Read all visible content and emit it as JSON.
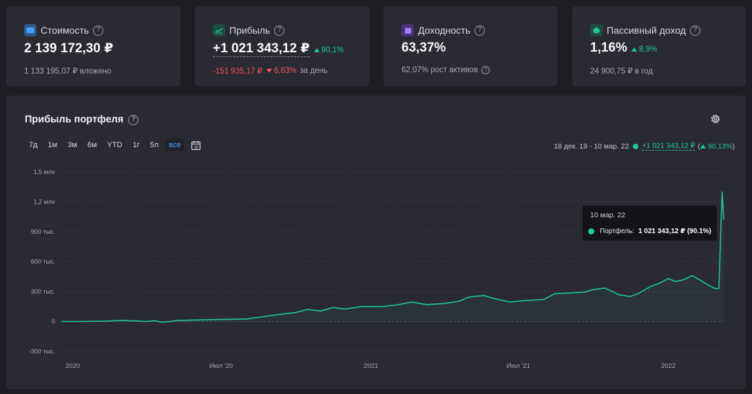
{
  "cards": [
    {
      "label": "Стоимость",
      "value": "2 139 172,30 ₽",
      "sub": "1 133 195,07 ₽ вложено",
      "icon": "wallet-icon",
      "color": "#3d8fe0"
    },
    {
      "label": "Прибыль",
      "value": "+1 021 343,12 ₽",
      "delta": "90,1%",
      "sub_value": "-151 935,17 ₽",
      "sub_delta": "6,63%",
      "sub_suffix": "за день",
      "icon": "chart-up-icon",
      "color": "#1f8f6a"
    },
    {
      "label": "Доходность",
      "value": "63,37%",
      "sub": "62,07% рост активов",
      "icon": "calendar-icon",
      "color": "#8a5ce6"
    },
    {
      "label": "Пассивный доход",
      "value": "1,16%",
      "delta": "8,9%",
      "sub": "24 900,75 ₽ в год",
      "icon": "piggy-bank-icon",
      "color": "#1fa57a"
    }
  ],
  "panel": {
    "title": "Прибыль портфеля",
    "ranges": [
      "7д",
      "1м",
      "3м",
      "6м",
      "YTD",
      "1г",
      "5л",
      "все"
    ],
    "active_range": "все",
    "period": "18 дек. 19 - 10 мар. 22",
    "period_value": "+1 021 343,12 ₽",
    "period_delta": "90,13%"
  },
  "tooltip": {
    "date": "10 мар. 22",
    "series": "Портфель:",
    "value": "1 021 343,12 ₽ (90.1%)"
  },
  "colors": {
    "accent": "#1fc996",
    "negative": "#f2545b",
    "active_tab": "#4aa3ff"
  },
  "chart_data": {
    "type": "line",
    "series_name": "Портфель",
    "y_ticks": [
      {
        "value": 1500000,
        "label": "1,5 млн"
      },
      {
        "value": 1200000,
        "label": "1,2 млн"
      },
      {
        "value": 900000,
        "label": "900 тыс."
      },
      {
        "value": 600000,
        "label": "600 тыс."
      },
      {
        "value": 300000,
        "label": "300 тыс."
      },
      {
        "value": 0,
        "label": "0"
      },
      {
        "value": -300000,
        "label": "-300 тыс."
      }
    ],
    "x_ticks": [
      {
        "date": "2020-01-01",
        "label": "2020"
      },
      {
        "date": "2020-07-01",
        "label": "Июл '20"
      },
      {
        "date": "2021-01-01",
        "label": "2021"
      },
      {
        "date": "2021-07-01",
        "label": "Июл '21"
      },
      {
        "date": "2022-01-01",
        "label": "2022"
      }
    ],
    "ylim": [
      -300000,
      1500000
    ],
    "xlim": [
      "2019-12-18",
      "2022-03-10"
    ],
    "points": [
      [
        "2019-12-18",
        0
      ],
      [
        "2020-01-10",
        0
      ],
      [
        "2020-02-10",
        3000
      ],
      [
        "2020-03-01",
        10000
      ],
      [
        "2020-03-20",
        5000
      ],
      [
        "2020-04-01",
        0
      ],
      [
        "2020-04-10",
        8000
      ],
      [
        "2020-04-20",
        -8000
      ],
      [
        "2020-05-10",
        10000
      ],
      [
        "2020-06-01",
        15000
      ],
      [
        "2020-07-01",
        20000
      ],
      [
        "2020-08-01",
        25000
      ],
      [
        "2020-09-01",
        60000
      ],
      [
        "2020-09-20",
        80000
      ],
      [
        "2020-10-01",
        90000
      ],
      [
        "2020-10-15",
        120000
      ],
      [
        "2020-11-01",
        105000
      ],
      [
        "2020-11-15",
        140000
      ],
      [
        "2020-12-01",
        125000
      ],
      [
        "2020-12-20",
        150000
      ],
      [
        "2021-01-15",
        150000
      ],
      [
        "2021-02-01",
        165000
      ],
      [
        "2021-02-20",
        195000
      ],
      [
        "2021-03-10",
        170000
      ],
      [
        "2021-04-01",
        180000
      ],
      [
        "2021-04-20",
        205000
      ],
      [
        "2021-05-01",
        245000
      ],
      [
        "2021-05-20",
        260000
      ],
      [
        "2021-06-01",
        230000
      ],
      [
        "2021-06-20",
        195000
      ],
      [
        "2021-07-10",
        210000
      ],
      [
        "2021-08-01",
        220000
      ],
      [
        "2021-08-15",
        280000
      ],
      [
        "2021-09-01",
        285000
      ],
      [
        "2021-09-20",
        295000
      ],
      [
        "2021-10-01",
        320000
      ],
      [
        "2021-10-15",
        335000
      ],
      [
        "2021-11-01",
        270000
      ],
      [
        "2021-11-15",
        250000
      ],
      [
        "2021-11-25",
        280000
      ],
      [
        "2021-12-10",
        350000
      ],
      [
        "2021-12-20",
        380000
      ],
      [
        "2022-01-01",
        430000
      ],
      [
        "2022-01-10",
        400000
      ],
      [
        "2022-01-20",
        420000
      ],
      [
        "2022-01-30",
        460000
      ],
      [
        "2022-02-10",
        410000
      ],
      [
        "2022-02-20",
        360000
      ],
      [
        "2022-02-27",
        330000
      ],
      [
        "2022-03-04",
        330000
      ],
      [
        "2022-03-08",
        1300000
      ],
      [
        "2022-03-10",
        1021343
      ]
    ]
  }
}
